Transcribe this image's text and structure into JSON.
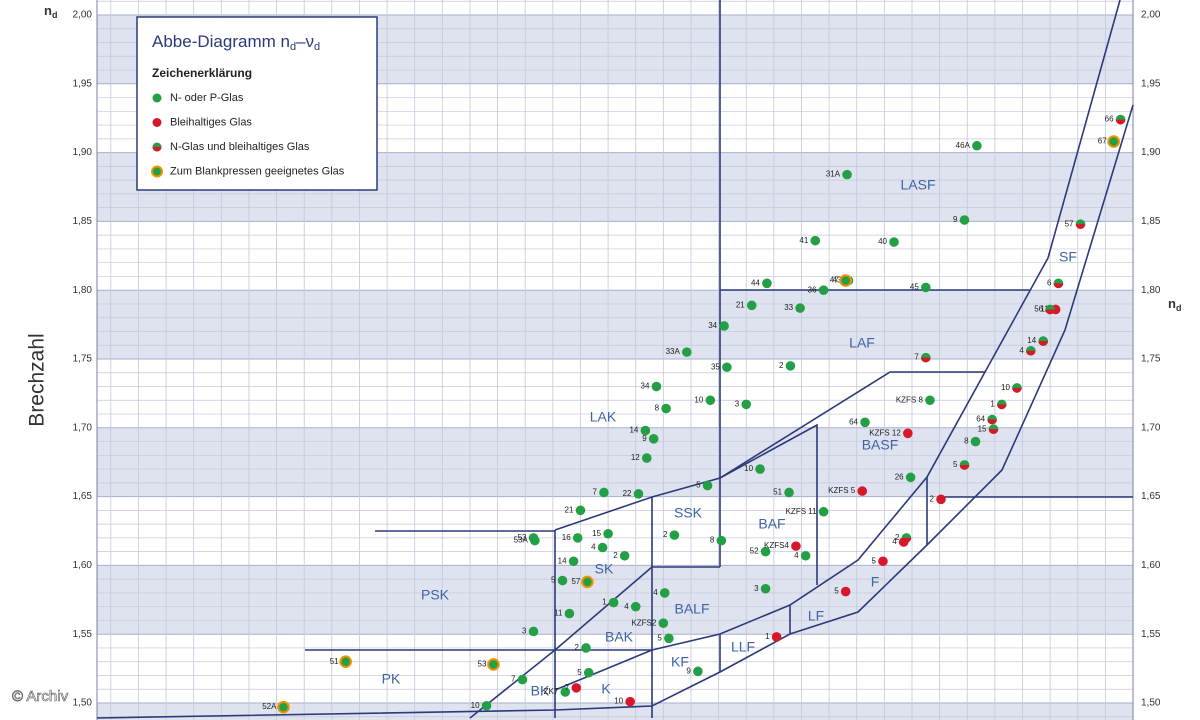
{
  "chart_data": {
    "type": "scatter",
    "title": [
      "Abbe-Diagramm n",
      "d",
      "–ν",
      "d"
    ],
    "y_label": "Brechzahl",
    "y_symbol": [
      "n",
      "d"
    ],
    "legend_title": "Zeichenerklärung",
    "watermark": "© Archiv",
    "xlim": [
      95,
      20
    ],
    "ylim": [
      1.5,
      2.0
    ],
    "yticks": [
      {
        "value": 1.5,
        "label": "1,50"
      },
      {
        "value": 1.55,
        "label": "1,55"
      },
      {
        "value": 1.6,
        "label": "1,60"
      },
      {
        "value": 1.65,
        "label": "1,65"
      },
      {
        "value": 1.7,
        "label": "1,70"
      },
      {
        "value": 1.75,
        "label": "1,75"
      },
      {
        "value": 1.8,
        "label": "1,80"
      },
      {
        "value": 1.85,
        "label": "1,85"
      },
      {
        "value": 1.9,
        "label": "1,90"
      },
      {
        "value": 1.95,
        "label": "1,95"
      },
      {
        "value": 2.0,
        "label": "2,00"
      }
    ],
    "xgrid": [
      20,
      22,
      24,
      26,
      28,
      30,
      32,
      34,
      36,
      38,
      40,
      42,
      44,
      46,
      48,
      50,
      52,
      54,
      56,
      58,
      60,
      62,
      64,
      66,
      68,
      70,
      72,
      74,
      76,
      78,
      80,
      82,
      84,
      86,
      88,
      90,
      92,
      94
    ],
    "ygrid": [
      1.49,
      1.51,
      1.52,
      1.53,
      1.54,
      1.56,
      1.57,
      1.58,
      1.59,
      1.61,
      1.62,
      1.63,
      1.64,
      1.66,
      1.67,
      1.68,
      1.69,
      1.71,
      1.72,
      1.73,
      1.74,
      1.76,
      1.77,
      1.78,
      1.79,
      1.81,
      1.82,
      1.83,
      1.84,
      1.86,
      1.87,
      1.88,
      1.89,
      1.91,
      1.92,
      1.93,
      1.94,
      1.96,
      1.97,
      1.98,
      1.99,
      2.01
    ],
    "grid": true,
    "bands": true,
    "regions": [
      "LASF",
      "SF",
      "LAF",
      "LAK",
      "BASF",
      "SSK",
      "BAF",
      "SK",
      "PSK",
      "BALF",
      "BAK",
      "LF",
      "F",
      "LLF",
      "KF",
      "PK",
      "BK",
      "K"
    ],
    "series": [
      {
        "name": "N- oder P-Glas",
        "color": "#23a046",
        "marker": "filled",
        "labels": [
          "46A",
          "31A",
          "9",
          "41",
          "40",
          "43",
          "44",
          "36",
          "45",
          "21",
          "33",
          "34",
          "33A",
          "2",
          "35",
          "34",
          "10",
          "3",
          "8",
          "KZFS 8",
          "64",
          "14",
          "9",
          "8",
          "12",
          "10",
          "26",
          "5",
          "7",
          "22",
          "51",
          "21",
          "KZFS 11",
          "53",
          "53A",
          "16",
          "15",
          "2",
          "8",
          "4",
          "4",
          "2",
          "52",
          "14",
          "5",
          "3",
          "4",
          "1",
          "4",
          "11",
          "KZFS2",
          "3",
          "5",
          "2",
          "5",
          "9",
          "7",
          "ZK7",
          "10"
        ],
        "x": [
          31.3,
          40.7,
          32.2,
          43.0,
          37.3,
          40.6,
          46.5,
          42.4,
          35.0,
          47.6,
          44.1,
          49.6,
          52.3,
          44.8,
          49.4,
          54.5,
          50.6,
          48.0,
          53.8,
          34.7,
          39.4,
          55.3,
          54.7,
          31.4,
          55.2,
          47.0,
          36.1,
          50.8,
          58.3,
          55.8,
          44.9,
          60.0,
          42.4,
          63.4,
          63.3,
          60.2,
          58.0,
          53.2,
          49.8,
          43.7,
          58.4,
          56.8,
          46.6,
          60.5,
          61.3,
          46.6,
          53.9,
          57.6,
          56.0,
          60.8,
          54.0,
          63.4,
          53.6,
          59.6,
          59.4,
          51.5,
          64.2,
          61.1,
          66.8
        ],
        "values": [
          1.905,
          1.884,
          1.851,
          1.836,
          1.835,
          1.807,
          1.805,
          1.8,
          1.802,
          1.789,
          1.787,
          1.774,
          1.755,
          1.745,
          1.744,
          1.73,
          1.72,
          1.717,
          1.714,
          1.72,
          1.704,
          1.698,
          1.692,
          1.69,
          1.678,
          1.67,
          1.664,
          1.658,
          1.653,
          1.652,
          1.653,
          1.64,
          1.639,
          1.62,
          1.618,
          1.62,
          1.623,
          1.622,
          1.618,
          1.607,
          1.613,
          1.607,
          1.61,
          1.603,
          1.589,
          1.583,
          1.58,
          1.573,
          1.57,
          1.565,
          1.558,
          1.552,
          1.547,
          1.54,
          1.522,
          1.523,
          1.517,
          1.508,
          1.498
        ]
      },
      {
        "name": "Bleihaltiges Glas",
        "color": "#d7182a",
        "marker": "filled",
        "labels": [
          "11",
          "KZFS 12",
          "KZFS 5",
          "2",
          "KZFS4",
          "4",
          "5",
          "5",
          "1",
          "7",
          "10"
        ],
        "x": [
          25.6,
          36.3,
          39.6,
          33.9,
          44.4,
          36.6,
          38.1,
          40.8,
          45.8,
          60.3,
          56.4
        ],
        "values": [
          1.786,
          1.696,
          1.654,
          1.648,
          1.614,
          1.617,
          1.603,
          1.581,
          1.548,
          1.511,
          1.501
        ]
      },
      {
        "name": "N-Glas und bleihaltiges Glas",
        "color": [
          "#23a046",
          "#d7182a"
        ],
        "marker": "split",
        "labels": [
          "66",
          "57",
          "6",
          "56",
          "14",
          "4",
          "7",
          "10",
          "1",
          "64",
          "15",
          "5",
          "2"
        ],
        "x": [
          20.9,
          23.8,
          25.4,
          26.0,
          26.5,
          27.4,
          35.0,
          28.4,
          29.5,
          30.2,
          30.1,
          32.2,
          36.4
        ],
        "values": [
          1.924,
          1.848,
          1.805,
          1.786,
          1.763,
          1.756,
          1.751,
          1.729,
          1.717,
          1.706,
          1.699,
          1.673,
          1.62
        ]
      },
      {
        "name": "Zum Blankpressen geeignetes Glas",
        "color": [
          "#23a046",
          "#f39200"
        ],
        "marker": "ring",
        "labels": [
          "67",
          "47",
          "57",
          "51",
          "53",
          "52A"
        ],
        "x": [
          21.4,
          40.8,
          59.5,
          77.0,
          66.3,
          81.5
        ],
        "values": [
          1.908,
          1.807,
          1.588,
          1.53,
          1.528,
          1.497
        ]
      }
    ]
  }
}
